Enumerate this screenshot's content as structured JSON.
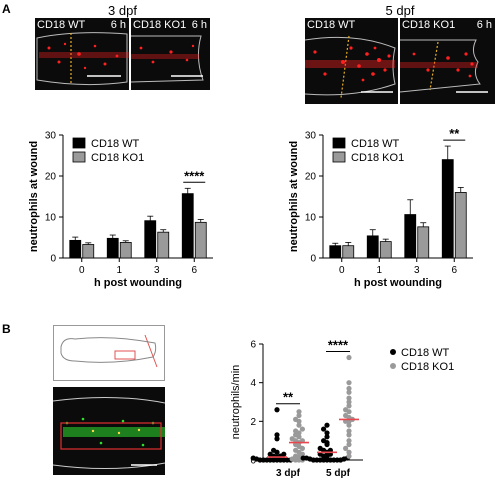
{
  "panel_a": {
    "label": "A",
    "left": {
      "title": "3 dpf",
      "images": [
        {
          "label": "CD18 WT",
          "time": "6 h"
        },
        {
          "label": "CD18 KO1",
          "time": "6 h"
        }
      ]
    },
    "right": {
      "title": "5 dpf",
      "images": [
        {
          "label": "CD18 WT",
          "time": "6 h"
        },
        {
          "label": "CD18 KO1",
          "time": "6 h"
        }
      ]
    }
  },
  "panel_b": {
    "label": "B"
  },
  "colors": {
    "wt": "#000000",
    "ko": "#9a9a9a",
    "mean_line": "#e8474f",
    "fluor_red": "#ff2020",
    "fluor_green": "#2ee02e"
  },
  "chart_data": [
    {
      "type": "bar",
      "categories": [
        "0",
        "1",
        "3",
        "6"
      ],
      "xlabel": "h post wounding",
      "ylabel": "neutrophils at wound",
      "ylim": [
        0,
        30
      ],
      "yticks": [
        "0",
        "10",
        "20",
        "30"
      ],
      "legend_position": "top-left",
      "series": [
        {
          "name": "CD18 WT",
          "values": [
            4.3,
            4.8,
            9.1,
            15.7
          ],
          "errors": [
            0.8,
            0.8,
            1.1,
            1.3
          ]
        },
        {
          "name": "CD18 KO1",
          "values": [
            3.3,
            3.8,
            6.3,
            8.7
          ],
          "errors": [
            0.4,
            0.4,
            0.6,
            0.7
          ]
        }
      ],
      "annotations": [
        {
          "category": "6",
          "text": "****"
        }
      ]
    },
    {
      "type": "bar",
      "categories": [
        "0",
        "1",
        "3",
        "6"
      ],
      "xlabel": "h post wounding",
      "ylabel": "neutrophils at wound",
      "ylim": [
        0,
        30
      ],
      "yticks": [
        "0",
        "10",
        "20",
        "30"
      ],
      "legend_position": "top-left",
      "series": [
        {
          "name": "CD18 WT",
          "values": [
            3.0,
            5.4,
            10.6,
            24.0
          ],
          "errors": [
            0.6,
            1.5,
            3.6,
            3.3
          ]
        },
        {
          "name": "CD18 KO1",
          "values": [
            3.0,
            4.0,
            7.6,
            16.0
          ],
          "errors": [
            0.8,
            0.6,
            1.0,
            1.2
          ]
        }
      ],
      "annotations": [
        {
          "category": "6",
          "text": "**"
        }
      ]
    },
    {
      "type": "scatter",
      "categories": [
        "3 dpf",
        "5 dpf"
      ],
      "ylabel": "neutrophils/min",
      "ylim": [
        0,
        6
      ],
      "yticks": [
        "0",
        "2",
        "4",
        "6"
      ],
      "legend_position": "right",
      "series": [
        {
          "name": "CD18 WT",
          "means": [
            0.15,
            0.4
          ],
          "points": [
            [
              0,
              0,
              0,
              0,
              0,
              0,
              0,
              0,
              0,
              0,
              0.05,
              0.05,
              0.1,
              0.1,
              0.1,
              0.15,
              0.2,
              0.2,
              0.3,
              0.3,
              0.4,
              0.5,
              1.1,
              1.3,
              2.6
            ],
            [
              0,
              0,
              0,
              0,
              0,
              0,
              0,
              0,
              0,
              0.05,
              0.05,
              0.1,
              0.1,
              0.1,
              0.2,
              0.2,
              0.3,
              0.3,
              0.4,
              0.5,
              0.5,
              0.6,
              0.8,
              0.9,
              1.0,
              1.2,
              1.4,
              1.6,
              1.8
            ]
          ]
        },
        {
          "name": "CD18 KO1",
          "means": [
            0.9,
            2.1
          ],
          "points": [
            [
              0,
              0,
              0,
              0.05,
              0.1,
              0.15,
              0.2,
              0.3,
              0.4,
              0.5,
              0.6,
              0.7,
              0.8,
              0.9,
              1.0,
              1.0,
              1.1,
              1.2,
              1.3,
              1.4,
              1.5,
              1.6,
              1.8,
              2.0,
              2.1,
              2.3,
              2.5
            ],
            [
              0.2,
              0.4,
              0.6,
              0.8,
              1.0,
              1.3,
              1.5,
              1.8,
              2.0,
              2.0,
              2.1,
              2.2,
              2.3,
              2.5,
              2.6,
              2.8,
              3.0,
              3.2,
              3.5,
              3.7,
              4.0,
              5.3
            ]
          ]
        }
      ],
      "annotations": [
        {
          "category": "3 dpf",
          "text": "**"
        },
        {
          "category": "5 dpf",
          "text": "****"
        }
      ]
    }
  ]
}
